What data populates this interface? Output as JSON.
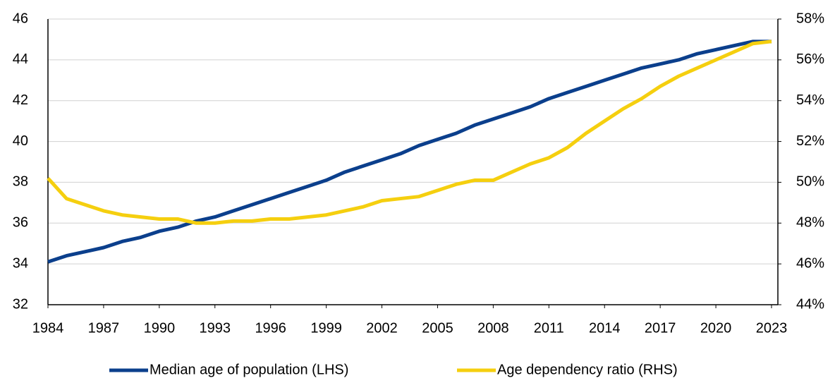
{
  "chart_data": {
    "type": "line",
    "x": [
      1984,
      1985,
      1986,
      1987,
      1988,
      1989,
      1990,
      1991,
      1992,
      1993,
      1994,
      1995,
      1996,
      1997,
      1998,
      1999,
      2000,
      2001,
      2002,
      2003,
      2004,
      2005,
      2006,
      2007,
      2008,
      2009,
      2010,
      2011,
      2012,
      2013,
      2014,
      2015,
      2016,
      2017,
      2018,
      2019,
      2020,
      2021,
      2022,
      2023
    ],
    "xlim": [
      1984,
      2023
    ],
    "xticks": [
      1984,
      1987,
      1990,
      1993,
      1996,
      1999,
      2002,
      2005,
      2008,
      2011,
      2014,
      2017,
      2020,
      2023
    ],
    "ylim": [
      32,
      46
    ],
    "yticks": [
      32,
      34,
      36,
      38,
      40,
      42,
      44,
      46
    ],
    "y2lim": [
      44,
      58
    ],
    "y2ticks": [
      {
        "value": 44,
        "label": "44%"
      },
      {
        "value": 46,
        "label": "46%"
      },
      {
        "value": 48,
        "label": "48%"
      },
      {
        "value": 50,
        "label": "50%"
      },
      {
        "value": 52,
        "label": "52%"
      },
      {
        "value": 54,
        "label": "54%"
      },
      {
        "value": 56,
        "label": "56%"
      },
      {
        "value": 58,
        "label": "58%"
      }
    ],
    "grid": true,
    "legend": "bottom",
    "series": [
      {
        "name": "Median age of population (LHS)",
        "color": "#0b3f8c",
        "values": [
          34.1,
          34.4,
          34.6,
          34.8,
          35.1,
          35.3,
          35.6,
          35.8,
          36.1,
          36.3,
          36.6,
          36.9,
          37.2,
          37.5,
          37.8,
          38.1,
          38.5,
          38.8,
          39.1,
          39.4,
          39.8,
          40.1,
          40.4,
          40.8,
          41.1,
          41.4,
          41.7,
          42.1,
          42.4,
          42.7,
          43.0,
          43.3,
          43.6,
          43.8,
          44.0,
          44.3,
          44.5,
          44.7,
          44.9,
          44.9
        ]
      },
      {
        "name": "Age dependency ratio (RHS)",
        "color": "#f5cf0f",
        "axis": "y2",
        "values": [
          50.2,
          49.2,
          48.9,
          48.6,
          48.4,
          48.3,
          48.2,
          48.2,
          48.0,
          48.0,
          48.1,
          48.1,
          48.2,
          48.2,
          48.3,
          48.4,
          48.6,
          48.8,
          49.1,
          49.2,
          49.3,
          49.6,
          49.9,
          50.1,
          50.1,
          50.5,
          50.9,
          51.2,
          51.7,
          52.4,
          53.0,
          53.6,
          54.1,
          54.7,
          55.2,
          55.6,
          56.0,
          56.4,
          56.8,
          56.9
        ]
      }
    ]
  }
}
